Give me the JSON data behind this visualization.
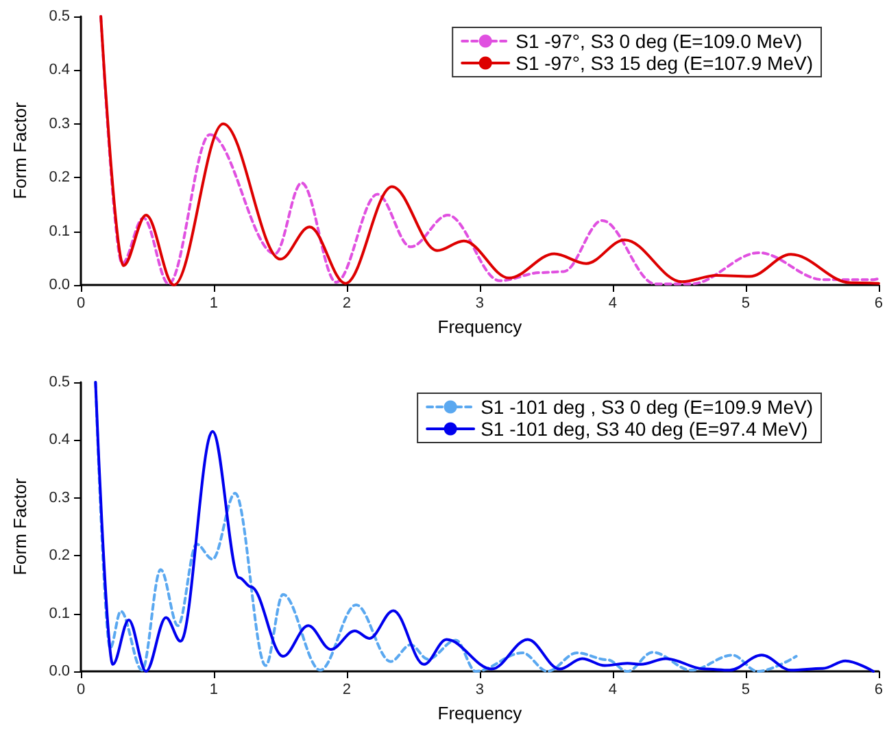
{
  "chart_data": [
    {
      "type": "line",
      "xlabel": "Frequency",
      "ylabel": "Form Factor",
      "xlim": [
        0,
        6
      ],
      "ylim": [
        0,
        0.5
      ],
      "xticks": [
        0,
        1,
        2,
        3,
        4,
        5,
        6
      ],
      "yticks": [
        {
          "value": 0,
          "label": "0.0"
        },
        0.1,
        0.2,
        0.3,
        0.4,
        0.5
      ],
      "grid": false,
      "legend": "top right",
      "marker": "none",
      "series": [
        {
          "name": "S1 -97°, S3 0 deg (E=109.0 MeV)",
          "color": "#e050e0",
          "line_style": "dashed",
          "x": [
            0.15,
            0.31,
            0.47,
            0.66,
            0.97,
            1.46,
            1.66,
            1.92,
            2.23,
            2.48,
            2.76,
            3.15,
            3.46,
            3.63,
            3.92,
            4.32,
            4.59,
            5.1,
            5.58,
            5.96,
            6.0
          ],
          "values": [
            0.5,
            0.04,
            0.125,
            0.002,
            0.28,
            0.058,
            0.19,
            0.005,
            0.169,
            0.071,
            0.13,
            0.008,
            0.023,
            0.025,
            0.12,
            0.002,
            0.002,
            0.06,
            0.01,
            0.01,
            0.012
          ]
        },
        {
          "name": "S1 -97°, S3 15 deg (E=107.9 MeV)",
          "color": "#dd0000",
          "line_style": "solid",
          "x": [
            0.15,
            0.32,
            0.49,
            0.7,
            1.07,
            1.5,
            1.72,
            1.99,
            2.34,
            2.68,
            2.88,
            3.22,
            3.56,
            3.8,
            4.09,
            4.52,
            4.78,
            5.03,
            5.34,
            5.79,
            6.0
          ],
          "values": [
            0.5,
            0.036,
            0.13,
            0.0,
            0.3,
            0.048,
            0.108,
            0.003,
            0.183,
            0.064,
            0.082,
            0.013,
            0.058,
            0.04,
            0.084,
            0.006,
            0.018,
            0.016,
            0.057,
            0.004,
            0.003
          ]
        }
      ]
    },
    {
      "type": "line",
      "xlabel": "Frequency",
      "ylabel": "Form Factor",
      "xlim": [
        0,
        6
      ],
      "ylim": [
        0,
        0.5
      ],
      "xticks": [
        0,
        1,
        2,
        3,
        4,
        5,
        6
      ],
      "yticks": [
        {
          "value": 0,
          "label": "0.0"
        },
        0.1,
        0.2,
        0.3,
        0.4,
        0.5
      ],
      "grid": false,
      "legend": "top right",
      "marker": "none",
      "series": [
        {
          "name": "S1 -101 deg , S3 0 deg (E=109.9 MeV)",
          "color": "#5aa8f0",
          "line_style": "dashed",
          "x": [
            0.11,
            0.22,
            0.3,
            0.46,
            0.6,
            0.73,
            0.87,
            0.99,
            1.16,
            1.39,
            1.52,
            1.8,
            2.07,
            2.33,
            2.48,
            2.61,
            2.82,
            2.97,
            3.32,
            3.51,
            3.73,
            3.96,
            4.11,
            4.3,
            4.59,
            4.9,
            5.09,
            5.38
          ],
          "values": [
            0.5,
            0.04,
            0.104,
            0.002,
            0.176,
            0.079,
            0.22,
            0.194,
            0.308,
            0.01,
            0.133,
            0.002,
            0.115,
            0.017,
            0.046,
            0.021,
            0.054,
            0.0,
            0.032,
            0.0,
            0.032,
            0.02,
            0.0,
            0.033,
            0.002,
            0.028,
            0.0,
            0.026
          ]
        },
        {
          "name": "S1 -101 deg, S3 40 deg (E=97.4 MeV)",
          "color": "#0000ee",
          "line_style": "solid",
          "x": [
            0.11,
            0.24,
            0.36,
            0.49,
            0.64,
            0.75,
            0.99,
            1.19,
            1.28,
            1.52,
            1.71,
            1.88,
            2.06,
            2.17,
            2.35,
            2.58,
            2.75,
            3.09,
            3.36,
            3.6,
            3.77,
            3.94,
            4.11,
            4.21,
            4.4,
            4.69,
            4.88,
            5.12,
            5.34,
            5.58,
            5.75,
            5.96
          ],
          "values": [
            0.5,
            0.012,
            0.089,
            0.0,
            0.093,
            0.052,
            0.415,
            0.162,
            0.146,
            0.026,
            0.079,
            0.038,
            0.07,
            0.057,
            0.105,
            0.012,
            0.055,
            0.004,
            0.055,
            0.004,
            0.022,
            0.01,
            0.014,
            0.012,
            0.022,
            0.004,
            0.002,
            0.028,
            0.002,
            0.005,
            0.018,
            0.0
          ]
        }
      ]
    }
  ]
}
